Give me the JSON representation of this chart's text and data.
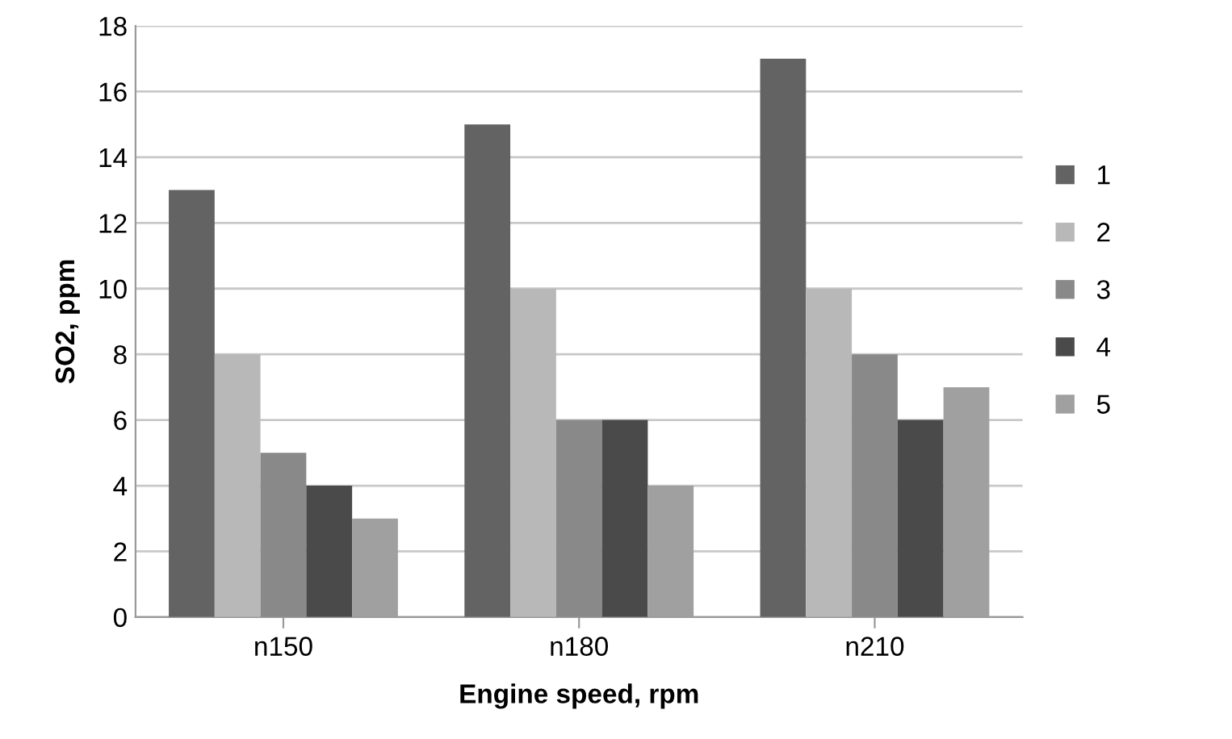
{
  "chart_data": {
    "type": "bar",
    "xlabel": "Engine speed, rpm",
    "ylabel": "SO2, ppm",
    "categories": [
      "n150",
      "n180",
      "n210"
    ],
    "series": [
      {
        "name": "1",
        "color": "#636363",
        "values": [
          13,
          15,
          17
        ]
      },
      {
        "name": "2",
        "color": "#b8b8b8",
        "values": [
          8,
          10,
          10
        ]
      },
      {
        "name": "3",
        "color": "#898989",
        "values": [
          5,
          6,
          8
        ]
      },
      {
        "name": "4",
        "color": "#4a4a4a",
        "values": [
          4,
          6,
          6
        ]
      },
      {
        "name": "5",
        "color": "#a0a0a0",
        "values": [
          3,
          4,
          7
        ]
      }
    ],
    "ylim": [
      0,
      18
    ],
    "yticks": [
      0,
      2,
      4,
      6,
      8,
      10,
      12,
      14,
      16,
      18
    ],
    "grid": "y",
    "legend": "right"
  }
}
